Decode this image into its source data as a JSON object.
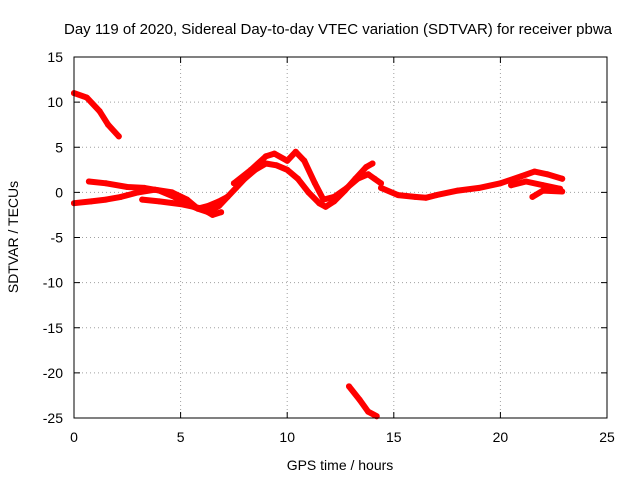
{
  "chart_data": {
    "type": "scatter",
    "title": "Day 119 of 2020, Sidereal Day-to-day VTEC variation (SDTVAR) for receiver pbwa",
    "xlabel": "GPS time / hours",
    "ylabel": "SDTVAR / TECUs",
    "xlim": [
      0,
      25
    ],
    "ylim": [
      -25,
      15
    ],
    "x_ticks": [
      0,
      5,
      10,
      15,
      20,
      25
    ],
    "y_ticks": [
      -25,
      -20,
      -15,
      -10,
      -5,
      0,
      5,
      10,
      15
    ],
    "grid": true,
    "series": [
      {
        "name": "SDTVAR",
        "color": "#ff0000",
        "segments": [
          {
            "x": [
              0.0,
              0.6,
              1.2,
              1.6,
              2.1
            ],
            "y": [
              11.0,
              10.5,
              9.0,
              7.5,
              6.2
            ]
          },
          {
            "x": [
              0.0,
              0.8,
              1.5,
              2.2,
              3.0,
              3.8,
              4.6,
              5.3,
              5.8,
              6.3,
              6.8,
              7.2,
              7.6,
              8.0,
              8.5,
              9.0,
              9.5,
              10.0,
              10.5,
              11.0,
              11.5,
              11.8,
              12.2,
              12.7,
              13.2,
              13.7,
              14.0
            ],
            "y": [
              -1.2,
              -1.0,
              -0.8,
              -0.5,
              0.0,
              0.3,
              0.0,
              -0.8,
              -1.8,
              -2.2,
              -1.5,
              -0.5,
              0.5,
              1.5,
              2.5,
              3.2,
              3.0,
              2.5,
              1.5,
              0.0,
              -1.2,
              -1.6,
              -1.0,
              0.2,
              1.5,
              2.8,
              3.2
            ]
          },
          {
            "x": [
              0.7,
              1.5,
              2.5,
              3.3,
              4.0,
              4.7,
              5.3,
              5.8,
              6.3,
              6.8,
              7.2
            ],
            "y": [
              1.2,
              1.0,
              0.6,
              0.5,
              0.2,
              -0.5,
              -1.3,
              -1.8,
              -1.5,
              -1.0,
              -0.5
            ]
          },
          {
            "x": [
              3.2,
              4.0,
              5.0,
              6.0,
              6.5,
              6.9
            ],
            "y": [
              -0.8,
              -1.0,
              -1.3,
              -1.8,
              -2.5,
              -2.2
            ]
          },
          {
            "x": [
              7.5,
              8.3,
              9.0,
              9.4,
              10.0,
              10.4,
              10.8,
              11.3,
              11.7,
              12.2,
              12.8,
              13.3,
              13.8,
              14.1,
              14.4
            ],
            "y": [
              1.0,
              2.5,
              4.0,
              4.3,
              3.5,
              4.5,
              3.5,
              1.0,
              -0.8,
              -0.5,
              0.5,
              1.5,
              2.0,
              1.5,
              1.0
            ]
          },
          {
            "x": [
              14.4,
              15.2,
              16.0,
              16.5,
              17.0,
              18.0,
              19.0,
              20.0,
              21.0,
              21.6,
              22.2,
              22.9
            ],
            "y": [
              0.5,
              -0.3,
              -0.5,
              -0.6,
              -0.3,
              0.2,
              0.5,
              1.0,
              1.8,
              2.3,
              2.0,
              1.5
            ]
          },
          {
            "x": [
              20.5,
              21.2,
              22.0,
              22.8
            ],
            "y": [
              0.8,
              1.2,
              0.8,
              0.4
            ]
          },
          {
            "x": [
              21.5,
              22.0,
              22.9
            ],
            "y": [
              -0.5,
              0.2,
              0.1
            ]
          },
          {
            "x": [
              12.9,
              13.4,
              13.8,
              14.2
            ],
            "y": [
              -21.5,
              -23.0,
              -24.3,
              -24.8
            ]
          }
        ]
      }
    ]
  }
}
